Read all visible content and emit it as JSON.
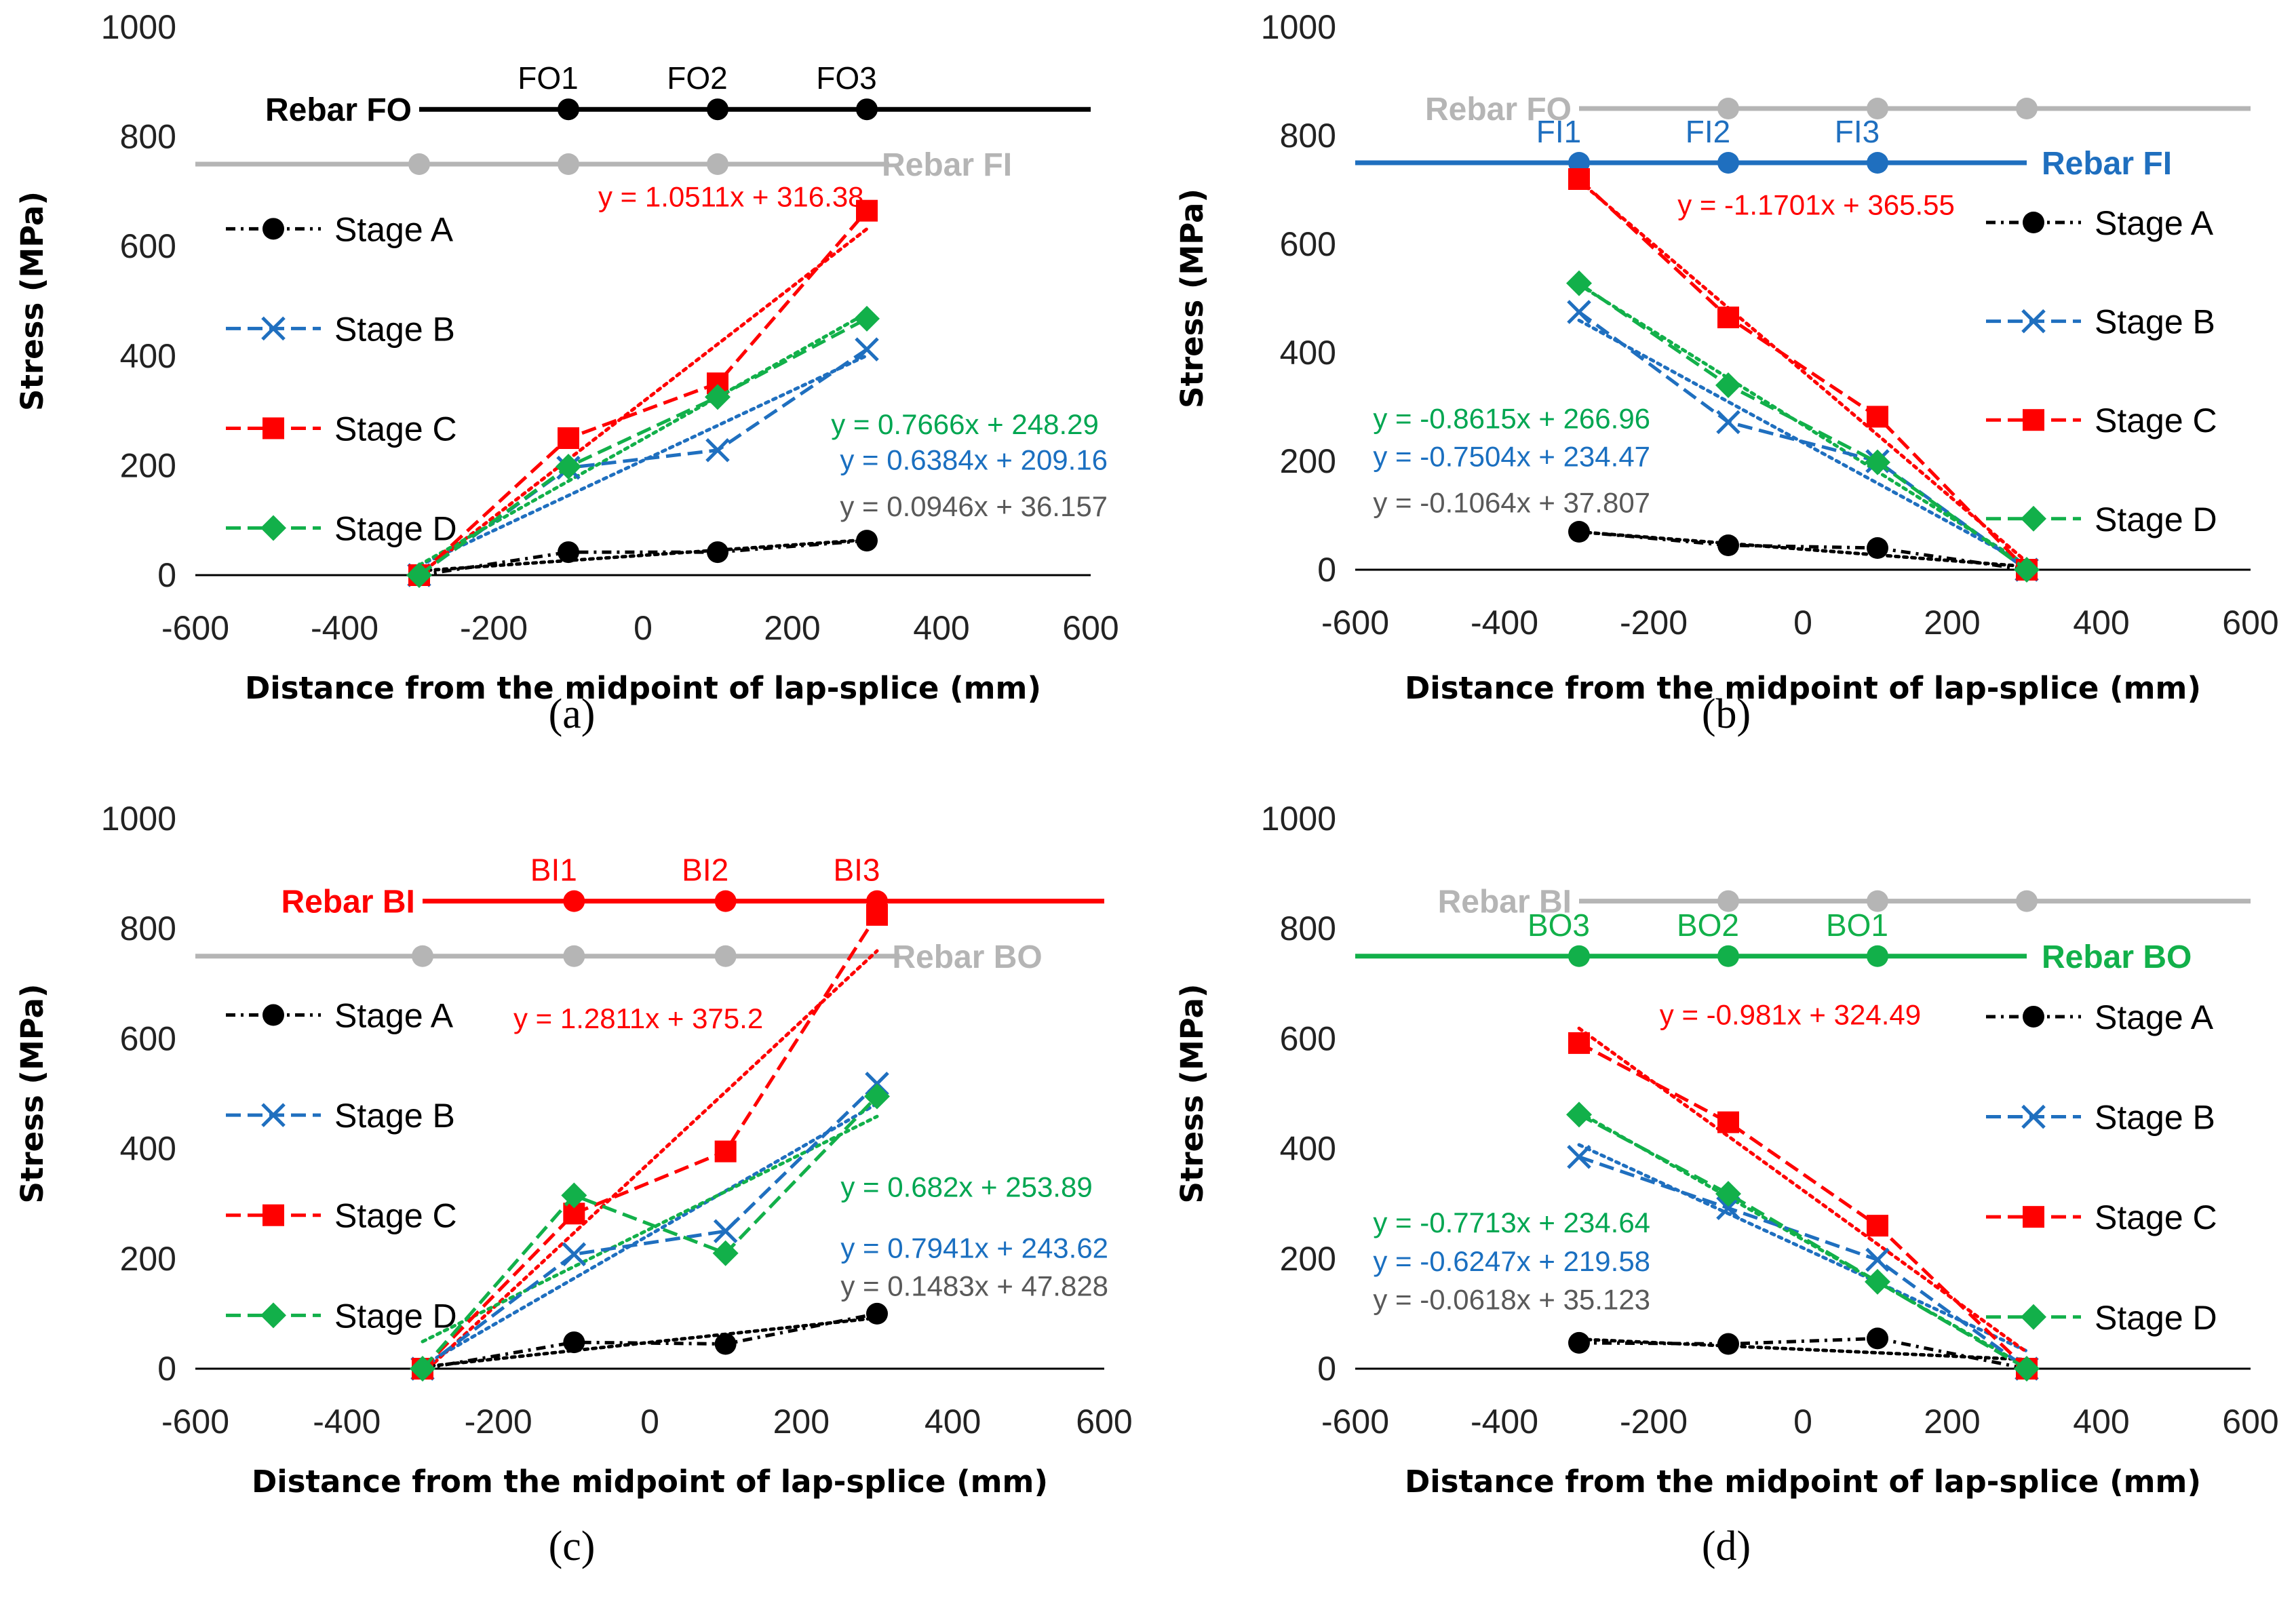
{
  "figure": {
    "colors": {
      "stage_a": "#000000",
      "stage_b": "#1f6fbf",
      "stage_c": "#ff0000",
      "stage_d": "#12b04a",
      "inactive": "#b5b5b5",
      "eq_d": "#00a651",
      "eq_b": "#1a6fc0",
      "eq_a_c": "#595959"
    },
    "legend": [
      "Stage A",
      "Stage B",
      "Stage C",
      "Stage D"
    ],
    "x_axis_label": "Distance from the midpoint of lap-splice (mm)",
    "y_axis_label": "Stress (MPa)"
  },
  "chart_data": [
    {
      "panel_label": "(a)",
      "type": "line",
      "xlim": [
        -600,
        600
      ],
      "ylim": [
        0,
        1000
      ],
      "xticks": [
        -600,
        -400,
        -200,
        0,
        200,
        400,
        600
      ],
      "yticks": [
        0,
        200,
        400,
        600,
        800,
        1000
      ],
      "x": [
        -300,
        -100,
        100,
        300
      ],
      "series": [
        {
          "name": "Stage A",
          "values": [
            0,
            42,
            42,
            63
          ]
        },
        {
          "name": "Stage B",
          "values": [
            0,
            196,
            228,
            412
          ]
        },
        {
          "name": "Stage C",
          "values": [
            0,
            250,
            350,
            665
          ]
        },
        {
          "name": "Stage D",
          "values": [
            0,
            198,
            325,
            468
          ]
        }
      ],
      "trendlines": {
        "a": "y = 0.0946x + 36.157",
        "b": "y = 0.6384x + 209.16",
        "c": "y = 1.0511x + 316.38",
        "d": "y = 0.7666x + 248.29"
      },
      "gauge_diagram": {
        "active_rebar": "Rebar FO",
        "inactive_rebar": "Rebar FI",
        "gauge_labels": [
          "FO1",
          "FO2",
          "FO3"
        ]
      }
    },
    {
      "panel_label": "(b)",
      "type": "line",
      "xlim": [
        -600,
        600
      ],
      "ylim": [
        0,
        1000
      ],
      "xticks": [
        -600,
        -400,
        -200,
        0,
        200,
        400,
        600
      ],
      "yticks": [
        0,
        200,
        400,
        600,
        800,
        1000
      ],
      "x": [
        -300,
        -100,
        100,
        300
      ],
      "series": [
        {
          "name": "Stage A",
          "values": [
            70,
            45,
            40,
            0
          ]
        },
        {
          "name": "Stage B",
          "values": [
            475,
            272,
            200,
            0
          ]
        },
        {
          "name": "Stage C",
          "values": [
            720,
            465,
            282,
            0
          ]
        },
        {
          "name": "Stage D",
          "values": [
            528,
            340,
            198,
            0
          ]
        }
      ],
      "trendlines": {
        "a": "y = -0.1064x + 37.807",
        "b": "y = -0.7504x + 234.47",
        "c": "y = -1.1701x + 365.55",
        "d": "y = -0.8615x + 266.96"
      },
      "gauge_diagram": {
        "active_rebar": "Rebar FI",
        "inactive_rebar": "Rebar FO",
        "gauge_labels": [
          "FI1",
          "FI2",
          "FI3"
        ]
      }
    },
    {
      "panel_label": "(c)",
      "type": "line",
      "xlim": [
        -600,
        600
      ],
      "ylim": [
        0,
        1000
      ],
      "xticks": [
        -600,
        -400,
        -200,
        0,
        200,
        400,
        600
      ],
      "yticks": [
        0,
        200,
        400,
        600,
        800,
        1000
      ],
      "x": [
        -300,
        -100,
        100,
        300
      ],
      "series": [
        {
          "name": "Stage A",
          "values": [
            0,
            48,
            45,
            100
          ]
        },
        {
          "name": "Stage B",
          "values": [
            0,
            208,
            250,
            518
          ]
        },
        {
          "name": "Stage C",
          "values": [
            0,
            282,
            395,
            825
          ]
        },
        {
          "name": "Stage D",
          "values": [
            0,
            315,
            210,
            495
          ]
        }
      ],
      "trendlines": {
        "a": "y = 0.1483x + 47.828",
        "b": "y = 0.7941x + 243.62",
        "c": "y = 1.2811x + 375.2",
        "d": "y = 0.682x + 253.89"
      },
      "gauge_diagram": {
        "active_rebar": "Rebar BI",
        "inactive_rebar": "Rebar BO",
        "gauge_labels": [
          "BI1",
          "BI2",
          "BI3"
        ]
      }
    },
    {
      "panel_label": "(d)",
      "type": "line",
      "xlim": [
        -600,
        600
      ],
      "ylim": [
        0,
        1000
      ],
      "xticks": [
        -600,
        -400,
        -200,
        0,
        200,
        400,
        600
      ],
      "yticks": [
        0,
        200,
        400,
        600,
        800,
        1000
      ],
      "x": [
        -300,
        -100,
        100,
        300
      ],
      "series": [
        {
          "name": "Stage A",
          "values": [
            47,
            45,
            55,
            0
          ]
        },
        {
          "name": "Stage B",
          "values": [
            385,
            292,
            198,
            0
          ]
        },
        {
          "name": "Stage C",
          "values": [
            592,
            448,
            260,
            0
          ]
        },
        {
          "name": "Stage D",
          "values": [
            462,
            318,
            158,
            0
          ]
        }
      ],
      "trendlines": {
        "a": "y = -0.0618x + 35.123",
        "b": "y = -0.6247x + 219.58",
        "c": "y = -0.981x + 324.49",
        "d": "y = -0.7713x + 234.64"
      },
      "gauge_diagram": {
        "active_rebar": "Rebar BO",
        "inactive_rebar": "Rebar BI",
        "gauge_labels": [
          "BO3",
          "BO2",
          "BO1"
        ]
      }
    }
  ]
}
